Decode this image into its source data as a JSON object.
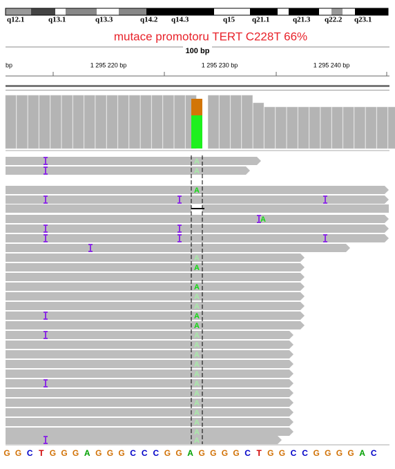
{
  "cytobands": [
    "q12.1",
    "q13.1",
    "q13.3",
    "q14.2",
    "q14.3",
    "q15",
    "q21.1",
    "q21.3",
    "q22.2",
    "q23.1"
  ],
  "title": "mutace promotoru TERT C228T 66%",
  "scale_label": "100 bp",
  "ruler_labels": [
    "bp",
    "1 295 220 bp",
    "1 295 230 bp",
    "1 295 240 bp"
  ],
  "read_bases": [
    "A",
    "A",
    "A",
    "A",
    "A",
    "A",
    "A",
    "A",
    "A",
    "A",
    "A",
    "A",
    "A",
    "A",
    "A",
    "A",
    "A",
    "A",
    "A",
    "A",
    "A",
    "A",
    "A",
    "A",
    "A",
    "A"
  ],
  "reference": [
    "G",
    "G",
    "C",
    "T",
    "G",
    "G",
    "G",
    "A",
    "G",
    "G",
    "G",
    "C",
    "C",
    "C",
    "G",
    "G",
    "A",
    "G",
    "G",
    "G",
    "G",
    "C",
    "T",
    "G",
    "G",
    "C",
    "C",
    "G",
    "G",
    "G",
    "G",
    "A",
    "C"
  ]
}
